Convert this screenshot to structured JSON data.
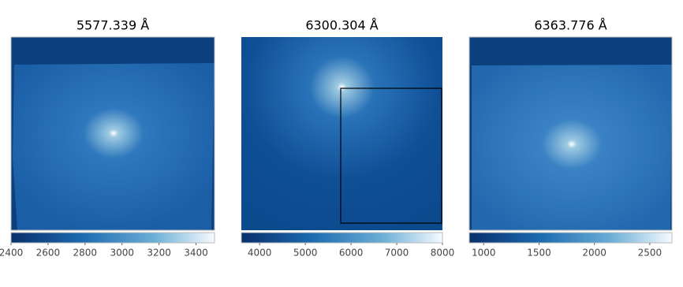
{
  "chart_data": [
    {
      "type": "image",
      "title": "5577.339 Å",
      "xlim": [
        2400,
        3500
      ],
      "xticks": [
        2400,
        2600,
        2800,
        3000,
        3200,
        3400
      ]
    },
    {
      "type": "image",
      "title": "6300.304 Å",
      "xlim": [
        3600,
        8000
      ],
      "xticks": [
        4000,
        5000,
        6000,
        7000,
        8000
      ]
    },
    {
      "type": "image",
      "title": "6363.776 Å",
      "xlim": [
        870,
        2700
      ],
      "xticks": [
        1000,
        1500,
        2000,
        2500
      ]
    }
  ]
}
